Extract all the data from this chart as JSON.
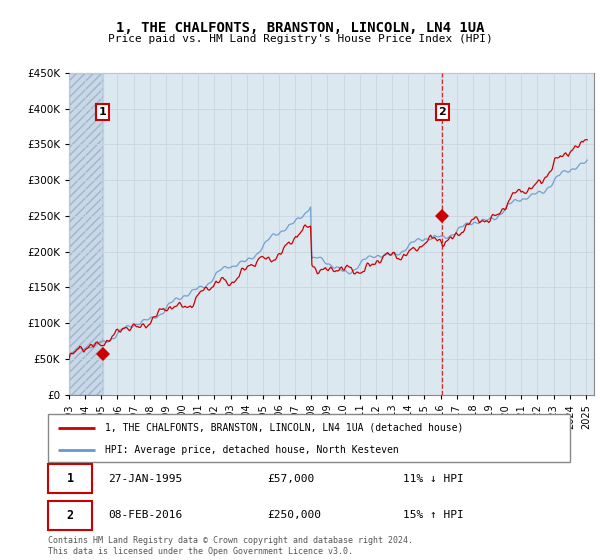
{
  "title": "1, THE CHALFONTS, BRANSTON, LINCOLN, LN4 1UA",
  "subtitle": "Price paid vs. HM Land Registry's House Price Index (HPI)",
  "sale1_date": "27-JAN-1995",
  "sale1_price": 57000,
  "sale1_label": "11% ↓ HPI",
  "sale1_x": 1995.08,
  "sale2_date": "08-FEB-2016",
  "sale2_price": 250000,
  "sale2_label": "15% ↑ HPI",
  "sale2_x": 2016.12,
  "legend_line1": "1, THE CHALFONTS, BRANSTON, LINCOLN, LN4 1UA (detached house)",
  "legend_line2": "HPI: Average price, detached house, North Kesteven",
  "footer": "Contains HM Land Registry data © Crown copyright and database right 2024.\nThis data is licensed under the Open Government Licence v3.0.",
  "price_line_color": "#cc0000",
  "hpi_line_color": "#6699cc",
  "vline_color": "#cc0000",
  "grid_color": "#c8d4e0",
  "table_border_color": "#cc0000",
  "xmin": 1993.0,
  "xmax": 2025.5,
  "plot_bg_color": "#dce8f0",
  "annotation_box_color": "#cc0000"
}
